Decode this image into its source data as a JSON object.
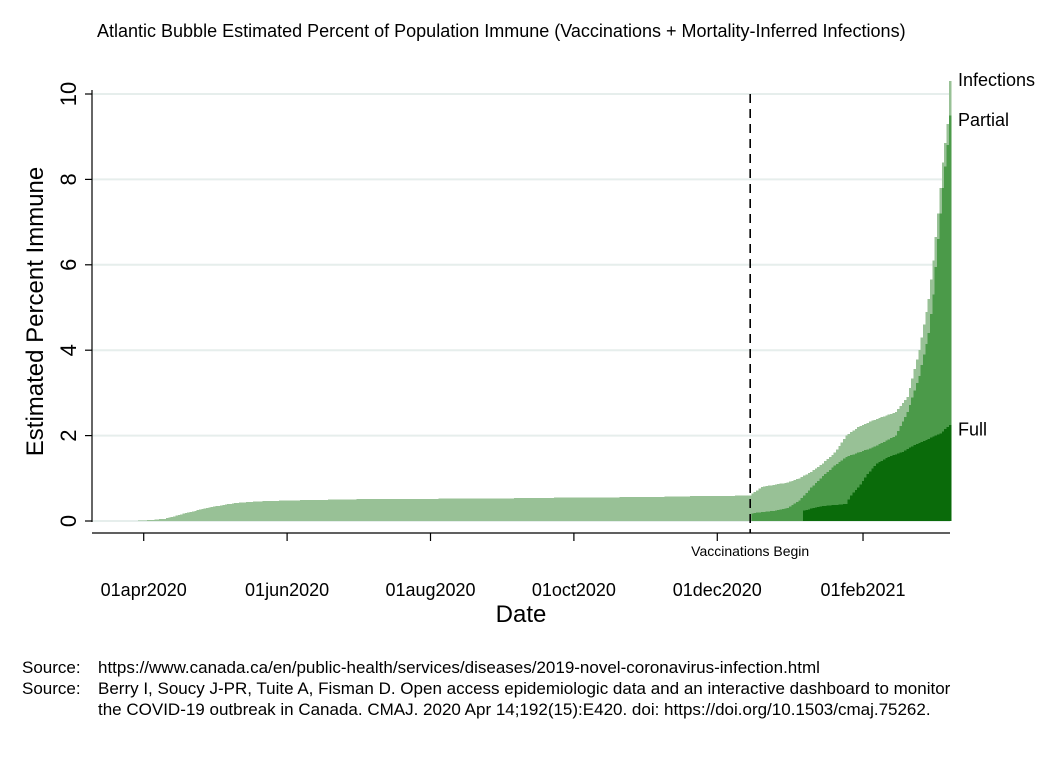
{
  "chart_data": {
    "type": "area",
    "title": "Atlantic Bubble Estimated Percent of Population Immune (Vaccinations + Mortality-Inferred Infections)",
    "xlabel": "Date",
    "ylabel": "Estimated Percent Immune",
    "x_range": [
      "2020-03-10",
      "2021-03-10"
    ],
    "ylim": [
      0,
      10
    ],
    "y_ticks": [
      0,
      2,
      4,
      6,
      8,
      10
    ],
    "x_ticks": [
      {
        "date": "2020-04-01",
        "label": "01apr2020"
      },
      {
        "date": "2020-06-01",
        "label": "01jun2020"
      },
      {
        "date": "2020-08-01",
        "label": "01aug2020"
      },
      {
        "date": "2020-10-01",
        "label": "01oct2020"
      },
      {
        "date": "2020-12-01",
        "label": "01dec2020"
      },
      {
        "date": "2021-02-01",
        "label": "01feb2021"
      }
    ],
    "grid": "horizontal",
    "vline": {
      "date": "2020-12-15",
      "label": "Vaccinations Begin",
      "style": "dashed"
    },
    "series": [
      {
        "name": "Infections",
        "color": "#98c196",
        "points": [
          [
            "2020-03-10",
            0
          ],
          [
            "2020-03-25",
            0
          ],
          [
            "2020-04-01",
            0.01
          ],
          [
            "2020-04-10",
            0.05
          ],
          [
            "2020-04-20",
            0.2
          ],
          [
            "2020-04-30",
            0.33
          ],
          [
            "2020-05-10",
            0.42
          ],
          [
            "2020-05-20",
            0.46
          ],
          [
            "2020-06-01",
            0.48
          ],
          [
            "2020-07-01",
            0.51
          ],
          [
            "2020-08-01",
            0.52
          ],
          [
            "2020-09-01",
            0.53
          ],
          [
            "2020-10-01",
            0.55
          ],
          [
            "2020-11-01",
            0.56
          ],
          [
            "2020-11-20",
            0.58
          ],
          [
            "2020-12-01",
            0.58
          ],
          [
            "2020-12-15",
            0.6
          ],
          [
            "2020-12-20",
            0.8
          ],
          [
            "2020-12-31",
            0.9
          ],
          [
            "2021-01-05",
            1.0
          ],
          [
            "2021-01-10",
            1.15
          ],
          [
            "2021-01-15",
            1.35
          ],
          [
            "2021-01-20",
            1.6
          ],
          [
            "2021-01-25",
            2.0
          ],
          [
            "2021-01-30",
            2.2
          ],
          [
            "2021-02-05",
            2.35
          ],
          [
            "2021-02-10",
            2.45
          ],
          [
            "2021-02-15",
            2.55
          ],
          [
            "2021-02-20",
            2.9
          ],
          [
            "2021-02-25",
            4.0
          ],
          [
            "2021-03-01",
            5.2
          ],
          [
            "2021-03-03",
            6.1
          ],
          [
            "2021-03-05",
            7.2
          ],
          [
            "2021-03-07",
            8.4
          ],
          [
            "2021-03-09",
            9.3
          ],
          [
            "2021-03-10",
            10.3
          ]
        ]
      },
      {
        "name": "Partial",
        "color": "#4b9a49",
        "points": [
          [
            "2020-12-15",
            0
          ],
          [
            "2020-12-16",
            0.18
          ],
          [
            "2020-12-25",
            0.24
          ],
          [
            "2020-12-31",
            0.3
          ],
          [
            "2021-01-05",
            0.48
          ],
          [
            "2021-01-10",
            0.78
          ],
          [
            "2021-01-15",
            1.05
          ],
          [
            "2021-01-20",
            1.3
          ],
          [
            "2021-01-25",
            1.5
          ],
          [
            "2021-01-30",
            1.6
          ],
          [
            "2021-02-05",
            1.72
          ],
          [
            "2021-02-10",
            1.85
          ],
          [
            "2021-02-15",
            2.0
          ],
          [
            "2021-02-20",
            2.55
          ],
          [
            "2021-02-25",
            3.4
          ],
          [
            "2021-03-01",
            4.4
          ],
          [
            "2021-03-03",
            5.3
          ],
          [
            "2021-03-05",
            6.6
          ],
          [
            "2021-03-07",
            7.8
          ],
          [
            "2021-03-09",
            8.8
          ],
          [
            "2021-03-10",
            9.5
          ]
        ]
      },
      {
        "name": "Full",
        "color": "#0a6b0a",
        "points": [
          [
            "2021-01-06",
            0
          ],
          [
            "2021-01-07",
            0.25
          ],
          [
            "2021-01-15",
            0.35
          ],
          [
            "2021-01-25",
            0.4
          ],
          [
            "2021-01-27",
            0.6
          ],
          [
            "2021-01-31",
            0.85
          ],
          [
            "2021-02-03",
            1.1
          ],
          [
            "2021-02-07",
            1.35
          ],
          [
            "2021-02-12",
            1.5
          ],
          [
            "2021-02-18",
            1.62
          ],
          [
            "2021-02-22",
            1.75
          ],
          [
            "2021-02-26",
            1.85
          ],
          [
            "2021-03-02",
            1.95
          ],
          [
            "2021-03-06",
            2.05
          ],
          [
            "2021-03-08",
            2.15
          ],
          [
            "2021-03-10",
            2.25
          ]
        ]
      }
    ]
  },
  "sources": [
    {
      "prefix": "Source:",
      "text": "https://www.canada.ca/en/public-health/services/diseases/2019-novel-coronavirus-infection.html"
    },
    {
      "prefix": "Source:",
      "text": "Berry I, Soucy J-PR, Tuite A, Fisman D. Open access epidemiologic data and an interactive dashboard to monitor the COVID-19 outbreak in Canada. CMAJ. 2020 Apr 14;192(15):E420. doi: https://doi.org/10.1503/cmaj.75262."
    }
  ]
}
